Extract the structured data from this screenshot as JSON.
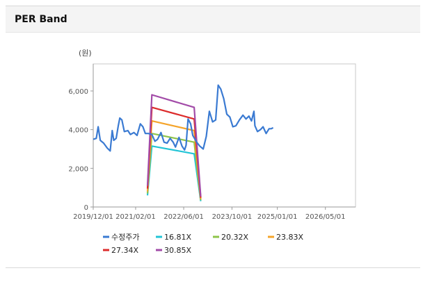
{
  "panel": {
    "title": "PER Band"
  },
  "chart_data": {
    "type": "line",
    "title": "",
    "xlabel": "",
    "ylabel": "(원)",
    "ylim": [
      0,
      7400
    ],
    "xlim": [
      "2019-12-01",
      "2027-03-01"
    ],
    "yticks": [
      0,
      2000,
      4000,
      6000
    ],
    "ytick_labels": [
      "0",
      "2,000",
      "4,000",
      "6,000"
    ],
    "xticks": [
      "2019-12-01",
      "2021-02-01",
      "2022-06-01",
      "2023-10-01",
      "2025-01-01",
      "2026-05-01"
    ],
    "xtick_labels": [
      "2019/12/01",
      "2021/02/01",
      "2022/06/01",
      "2023/10/01",
      "2025/01/01",
      "2026/05/01"
    ],
    "grid": false,
    "legend_position": "bottom",
    "series": [
      {
        "name": "수정주가",
        "color": "#3a7ad2",
        "points": [
          [
            "2019-12-01",
            3500
          ],
          [
            "2020-01-01",
            3550
          ],
          [
            "2020-01-20",
            4150
          ],
          [
            "2020-02-10",
            3450
          ],
          [
            "2020-03-15",
            3300
          ],
          [
            "2020-04-20",
            3050
          ],
          [
            "2020-05-20",
            2900
          ],
          [
            "2020-06-10",
            3950
          ],
          [
            "2020-06-25",
            3450
          ],
          [
            "2020-07-20",
            3550
          ],
          [
            "2020-08-10",
            4200
          ],
          [
            "2020-08-25",
            4600
          ],
          [
            "2020-09-15",
            4500
          ],
          [
            "2020-10-10",
            3900
          ],
          [
            "2020-11-15",
            3950
          ],
          [
            "2020-12-10",
            3750
          ],
          [
            "2021-01-15",
            3850
          ],
          [
            "2021-02-15",
            3700
          ],
          [
            "2021-03-20",
            4300
          ],
          [
            "2021-04-15",
            4150
          ],
          [
            "2021-05-10",
            3800
          ],
          [
            "2021-06-10",
            3800
          ],
          [
            "2021-07-15",
            3750
          ],
          [
            "2021-08-15",
            3400
          ],
          [
            "2021-09-10",
            3500
          ],
          [
            "2021-10-15",
            3850
          ],
          [
            "2021-11-15",
            3350
          ],
          [
            "2021-12-15",
            3300
          ],
          [
            "2022-01-15",
            3550
          ],
          [
            "2022-02-15",
            3350
          ],
          [
            "2022-03-10",
            3100
          ],
          [
            "2022-04-15",
            3600
          ],
          [
            "2022-05-15",
            3150
          ],
          [
            "2022-06-10",
            2950
          ],
          [
            "2022-06-25",
            3200
          ],
          [
            "2022-07-15",
            4550
          ],
          [
            "2022-08-10",
            4300
          ],
          [
            "2022-09-01",
            3700
          ],
          [
            "2022-10-10",
            3350
          ],
          [
            "2022-11-10",
            3150
          ],
          [
            "2022-12-15",
            3000
          ],
          [
            "2023-01-15",
            3650
          ],
          [
            "2023-02-15",
            4950
          ],
          [
            "2023-03-20",
            4400
          ],
          [
            "2023-04-20",
            4500
          ],
          [
            "2023-05-15",
            6300
          ],
          [
            "2023-06-10",
            6100
          ],
          [
            "2023-07-10",
            5600
          ],
          [
            "2023-08-10",
            4800
          ],
          [
            "2023-09-10",
            4650
          ],
          [
            "2023-10-10",
            4150
          ],
          [
            "2023-11-10",
            4200
          ],
          [
            "2023-12-15",
            4500
          ],
          [
            "2024-01-20",
            4750
          ],
          [
            "2024-02-20",
            4550
          ],
          [
            "2024-03-20",
            4700
          ],
          [
            "2024-04-15",
            4450
          ],
          [
            "2024-05-10",
            4950
          ],
          [
            "2024-05-20",
            4200
          ],
          [
            "2024-06-15",
            3900
          ],
          [
            "2024-07-15",
            4000
          ],
          [
            "2024-08-10",
            4150
          ],
          [
            "2024-09-10",
            3800
          ],
          [
            "2024-10-10",
            4050
          ],
          [
            "2024-11-01",
            4050
          ],
          [
            "2024-11-20",
            4100
          ]
        ]
      },
      {
        "name": "16.81X",
        "color": "#21c4d6",
        "points": [
          [
            "2021-06-01",
            600
          ],
          [
            "2021-07-15",
            3150
          ],
          [
            "2022-09-15",
            2750
          ],
          [
            "2022-11-20",
            300
          ]
        ]
      },
      {
        "name": "20.32X",
        "color": "#8ec44a",
        "points": [
          [
            "2021-06-01",
            700
          ],
          [
            "2021-07-15",
            3800
          ],
          [
            "2022-09-15",
            3350
          ],
          [
            "2022-11-20",
            350
          ]
        ]
      },
      {
        "name": "23.83X",
        "color": "#f5a42a",
        "points": [
          [
            "2021-06-01",
            800
          ],
          [
            "2021-07-15",
            4450
          ],
          [
            "2022-09-15",
            3950
          ],
          [
            "2022-11-20",
            420
          ]
        ]
      },
      {
        "name": "27.34X",
        "color": "#dc2b2b",
        "points": [
          [
            "2021-06-01",
            950
          ],
          [
            "2021-07-15",
            5150
          ],
          [
            "2022-09-15",
            4550
          ],
          [
            "2022-11-20",
            480
          ]
        ]
      },
      {
        "name": "30.85X",
        "color": "#a24ba8",
        "points": [
          [
            "2021-06-01",
            1100
          ],
          [
            "2021-07-15",
            5800
          ],
          [
            "2022-09-15",
            5150
          ],
          [
            "2022-11-20",
            540
          ]
        ]
      }
    ]
  }
}
